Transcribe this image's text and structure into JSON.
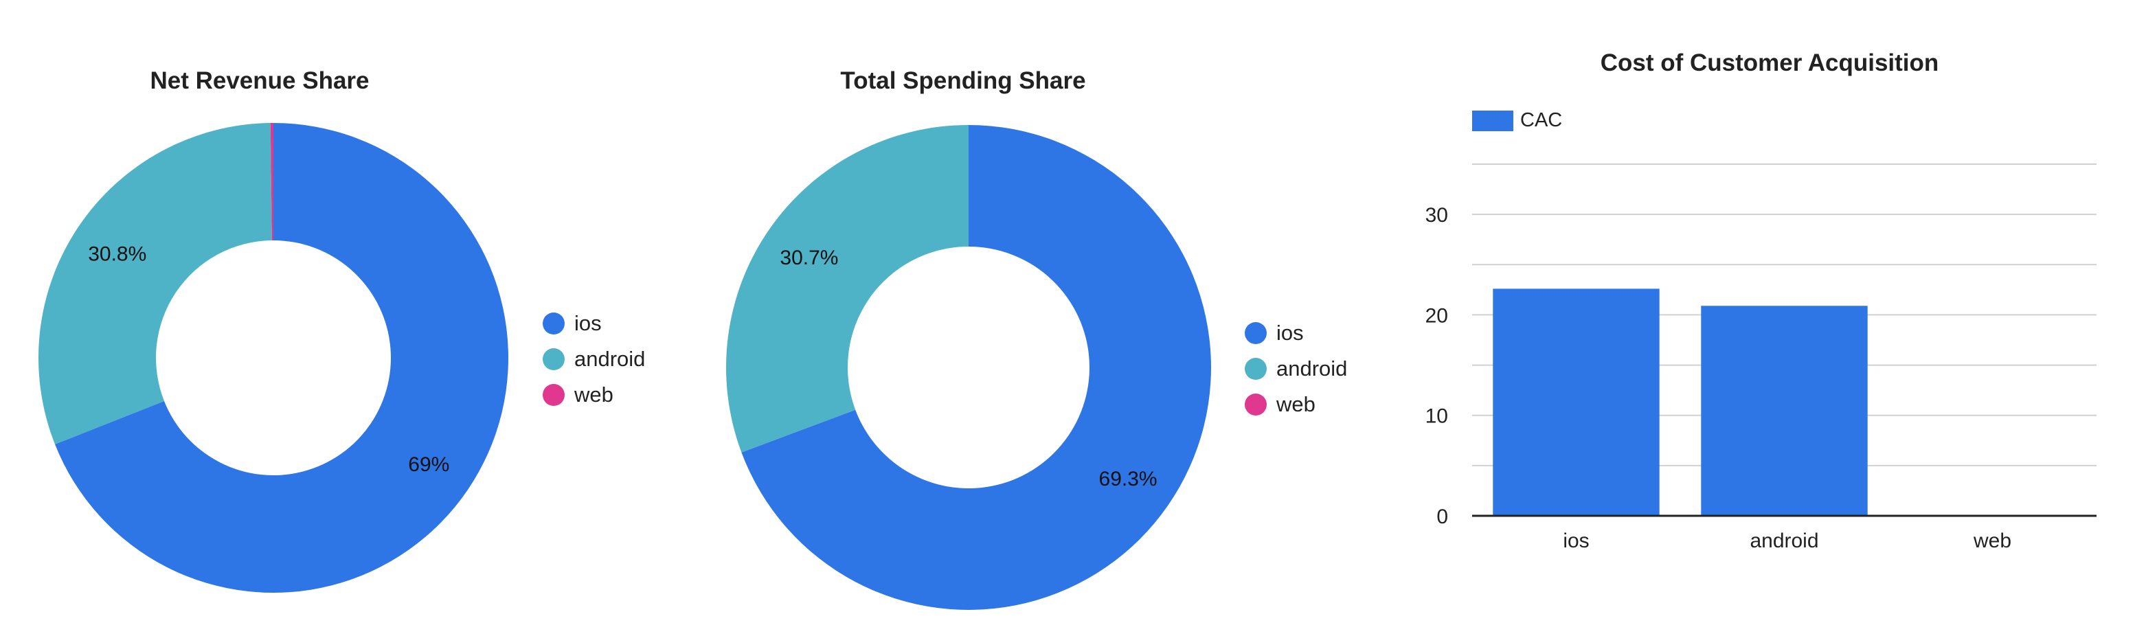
{
  "colors": {
    "ios": "#2e75e6",
    "android": "#4fb3c8",
    "web": "#e0388f"
  },
  "chart_data": [
    {
      "type": "pie",
      "title": "Net Revenue Share",
      "donut": true,
      "categories": [
        "ios",
        "android",
        "web"
      ],
      "values": [
        69.0,
        30.8,
        0.2
      ],
      "data_labels": [
        "69%",
        "30.8%",
        ""
      ],
      "legend": "right"
    },
    {
      "type": "pie",
      "title": "Total Spending Share",
      "donut": true,
      "categories": [
        "ios",
        "android",
        "web"
      ],
      "values": [
        69.3,
        30.7,
        0.0
      ],
      "data_labels": [
        "69.3%",
        "30.7%",
        ""
      ],
      "legend": "right"
    },
    {
      "type": "bar",
      "title": "Cost of Customer Acquisition",
      "categories": [
        "ios",
        "android",
        "web"
      ],
      "series": [
        {
          "name": "CAC",
          "values": [
            22.6,
            20.9,
            0
          ]
        }
      ],
      "ylim": [
        0,
        35
      ],
      "yticks": [
        0,
        10,
        20,
        30
      ],
      "grid": true,
      "legend": "top-left"
    }
  ]
}
